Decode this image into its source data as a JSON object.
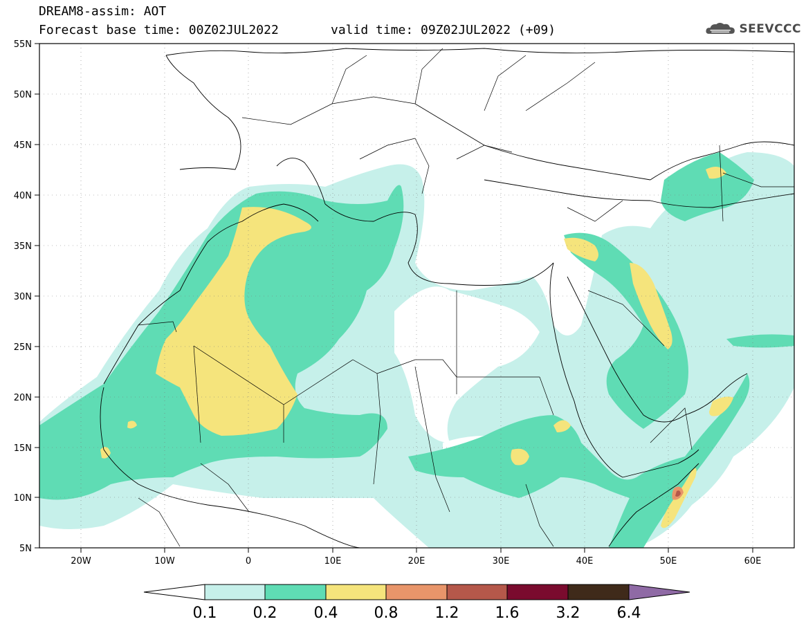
{
  "header": {
    "title": "DREAM8-assim: AOT",
    "forecast_label": "Forecast base time: 00Z02JUL2022",
    "valid_label": "valid time: 09Z02JUL2022 (+09)",
    "logo_text": "SEEVCCC"
  },
  "axes": {
    "lat_labels": [
      "55N",
      "50N",
      "45N",
      "40N",
      "35N",
      "30N",
      "25N",
      "20N",
      "15N",
      "10N",
      "5N"
    ],
    "lon_labels": [
      "20W",
      "10W",
      "0",
      "10E",
      "20E",
      "30E",
      "40E",
      "50E",
      "60E"
    ]
  },
  "colorbar": {
    "labels": [
      "0.1",
      "0.2",
      "0.4",
      "0.8",
      "1.2",
      "1.6",
      "3.2",
      "6.4"
    ],
    "colors": [
      "#ffffff",
      "#c6f0ea",
      "#5fdcb4",
      "#f5e47c",
      "#e8956a",
      "#b5584a",
      "#7a0b2e",
      "#3f2a1a",
      "#8f6aa5"
    ]
  }
}
